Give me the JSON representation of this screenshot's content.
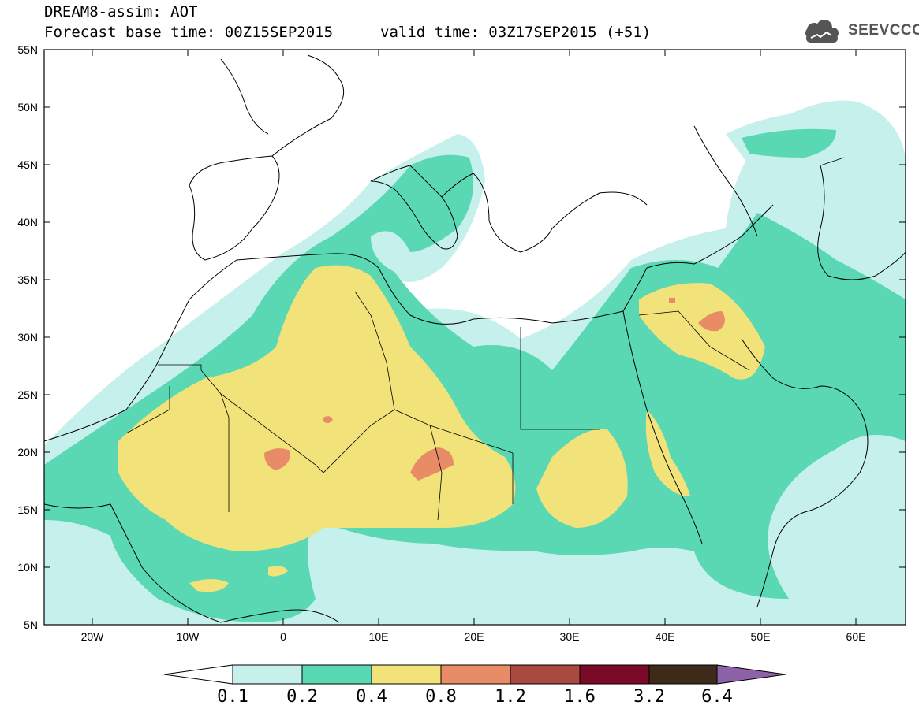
{
  "header": {
    "title": "DREAM8-assim: AOT",
    "forecast_base": "Forecast base time: 00Z15SEP2015",
    "valid_time": "valid time: 03Z17SEP2015 (+51)",
    "logo_text": "SEEVCCC"
  },
  "map": {
    "projection": "lat-lon",
    "lon_range": [
      -25,
      65
    ],
    "lat_range": [
      5,
      55
    ],
    "lat_ticks": [
      "55N",
      "50N",
      "45N",
      "40N",
      "35N",
      "30N",
      "25N",
      "20N",
      "15N",
      "10N",
      "5N"
    ],
    "lon_ticks": [
      "20W",
      "10W",
      "0",
      "10E",
      "20E",
      "30E",
      "40E",
      "50E",
      "60E"
    ],
    "variable": "AOT"
  },
  "colorbar": {
    "labels": [
      "0.1",
      "0.2",
      "0.4",
      "0.8",
      "1.2",
      "1.6",
      "3.2",
      "6.4"
    ],
    "colors": [
      "#c6f0ec",
      "#5ad8b4",
      "#f2e27a",
      "#e88c68",
      "#a84a40",
      "#7a0a28",
      "#3e2a18",
      "#8e62a8"
    ],
    "under_color": "#ffffff",
    "over_color": "#8e62a8"
  }
}
